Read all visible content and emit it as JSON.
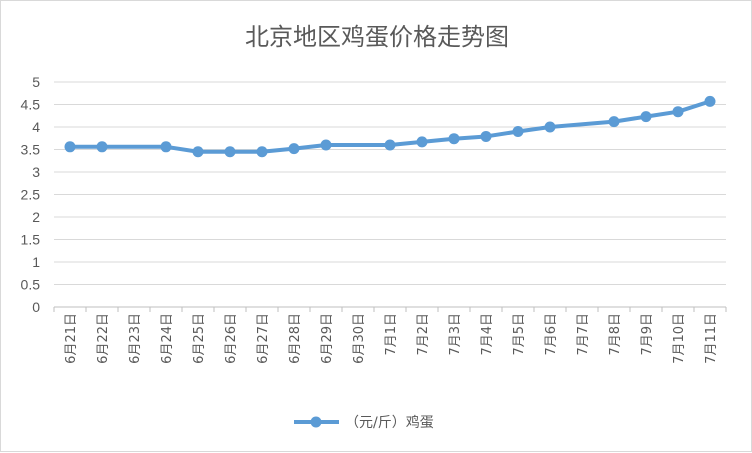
{
  "chart_data": {
    "type": "line",
    "title": "北京地区鸡蛋价格走势图",
    "categories": [
      "6月21日",
      "6月22日",
      "6月23日",
      "6月24日",
      "6月25日",
      "6月26日",
      "6月27日",
      "6月28日",
      "6月29日",
      "6月30日",
      "7月1日",
      "7月2日",
      "7月3日",
      "7月4日",
      "7月5日",
      "7月6日",
      "7月7日",
      "7月8日",
      "7月9日",
      "7月10日",
      "7月11日"
    ],
    "series": [
      {
        "name": "（元/斤）鸡蛋",
        "values": [
          3.56,
          3.56,
          null,
          3.56,
          3.45,
          3.45,
          3.45,
          3.52,
          3.6,
          null,
          3.6,
          3.67,
          3.74,
          3.79,
          3.9,
          4.0,
          null,
          4.12,
          4.23,
          4.34,
          4.57
        ],
        "color": "#5b9bd5"
      }
    ],
    "ylim": [
      0,
      5
    ],
    "yticks": [
      "0",
      "0.5",
      "1",
      "1.5",
      "2",
      "2.5",
      "3",
      "3.5",
      "4",
      "4.5",
      "5"
    ],
    "grid": true,
    "legend": "bottom"
  }
}
